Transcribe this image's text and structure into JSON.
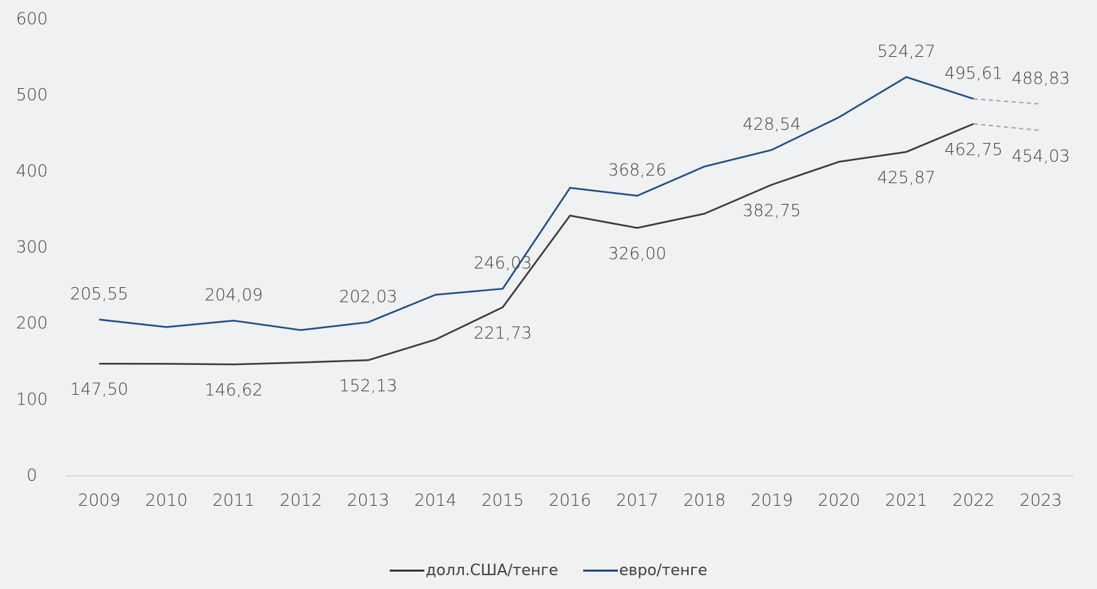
{
  "chart_data": {
    "type": "line",
    "title": "",
    "xlabel": "",
    "ylabel": "",
    "categories": [
      "2009",
      "2010",
      "2011",
      "2012",
      "2013",
      "2014",
      "2015",
      "2016",
      "2017",
      "2018",
      "2019",
      "2020",
      "2021",
      "2022",
      "2023"
    ],
    "ylim": [
      0,
      600
    ],
    "yticks": [
      0,
      100,
      200,
      300,
      400,
      500,
      600
    ],
    "grid": false,
    "legend_position": "bottom",
    "forecast_from": "2022",
    "series": [
      {
        "name": "долл.США/тенге",
        "color": "#3a3a3a",
        "values": [
          147.5,
          147.35,
          146.62,
          149.11,
          152.13,
          179.19,
          221.73,
          342.16,
          326.0,
          344.71,
          382.75,
          412.95,
          425.87,
          462.75,
          454.03
        ],
        "labels": {
          "2009": "147,50",
          "2011": "146,62",
          "2013": "152,13",
          "2015": "221,73",
          "2017": "326,00",
          "2019": "382,75",
          "2021": "425,87",
          "2022": "462,75",
          "2023": "454,03"
        }
      },
      {
        "name": "евро/тенге",
        "color": "#1f4e85",
        "values": [
          205.55,
          195.67,
          204.09,
          191.67,
          202.03,
          238.1,
          246.03,
          378.63,
          368.26,
          406.66,
          428.54,
          471.45,
          524.27,
          495.61,
          488.83
        ],
        "labels": {
          "2009": "205,55",
          "2011": "204,09",
          "2013": "202,03",
          "2015": "246,03",
          "2017": "368,26",
          "2019": "428,54",
          "2021": "524,27",
          "2022": "495,61",
          "2023": "488,83"
        }
      }
    ]
  }
}
